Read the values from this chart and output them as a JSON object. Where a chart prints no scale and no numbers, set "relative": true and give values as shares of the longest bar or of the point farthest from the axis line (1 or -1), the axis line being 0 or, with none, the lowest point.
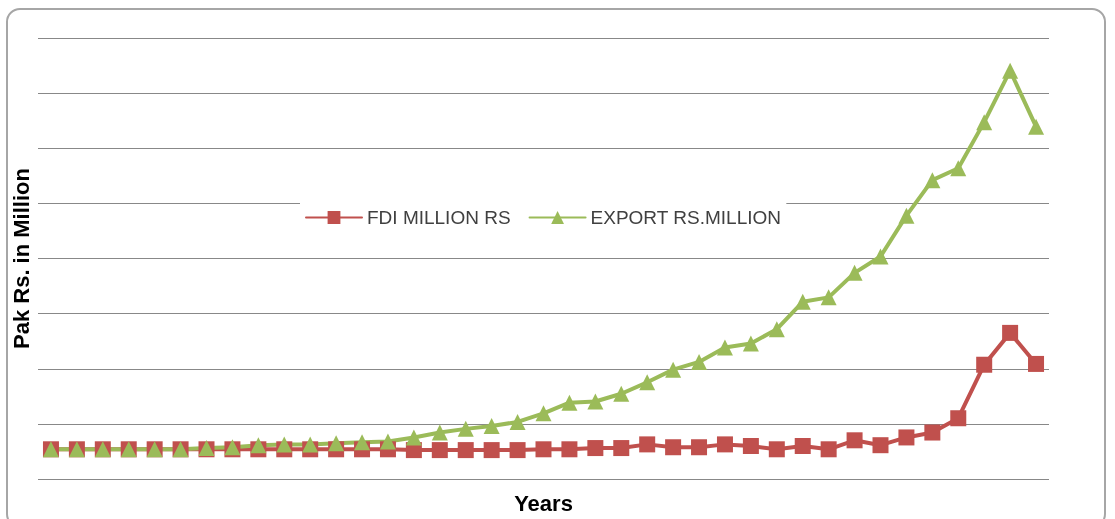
{
  "chart_data": {
    "type": "line",
    "xlabel": "Years",
    "ylabel": "Pak Rs. in Million",
    "relative": true,
    "grid": "y",
    "legend": "center",
    "categories": [
      null,
      null,
      null,
      null,
      null,
      null,
      null,
      null,
      null,
      null,
      null,
      null,
      null,
      null,
      null,
      null,
      null,
      null,
      null,
      null,
      null,
      null,
      null,
      null,
      null,
      null,
      null,
      null,
      null,
      null,
      null,
      null,
      null,
      null,
      null,
      null,
      null,
      null,
      null
    ],
    "series": [
      {
        "name": "FDI MILLION RS",
        "color": "#c0504d",
        "marker": "square",
        "values": [
          0.073,
          0.073,
          0.073,
          0.073,
          0.073,
          0.073,
          0.073,
          0.073,
          0.073,
          0.073,
          0.073,
          0.073,
          0.073,
          0.073,
          0.071,
          0.071,
          0.071,
          0.071,
          0.071,
          0.073,
          0.073,
          0.076,
          0.076,
          0.085,
          0.078,
          0.078,
          0.085,
          0.081,
          0.073,
          0.081,
          0.073,
          0.095,
          0.083,
          0.102,
          0.114,
          0.149,
          0.28,
          0.358,
          0.282
        ]
      },
      {
        "name": "EXPORT RS.MILLION",
        "color": "#9bbb59",
        "marker": "triangle",
        "values": [
          0.073,
          0.073,
          0.073,
          0.073,
          0.073,
          0.073,
          0.076,
          0.078,
          0.083,
          0.085,
          0.085,
          0.088,
          0.09,
          0.092,
          0.102,
          0.114,
          0.123,
          0.13,
          0.14,
          0.161,
          0.187,
          0.19,
          0.209,
          0.237,
          0.268,
          0.287,
          0.322,
          0.332,
          0.367,
          0.434,
          0.445,
          0.505,
          0.545,
          0.645,
          0.732,
          0.761,
          0.874,
          1,
          0.863
        ]
      }
    ]
  }
}
